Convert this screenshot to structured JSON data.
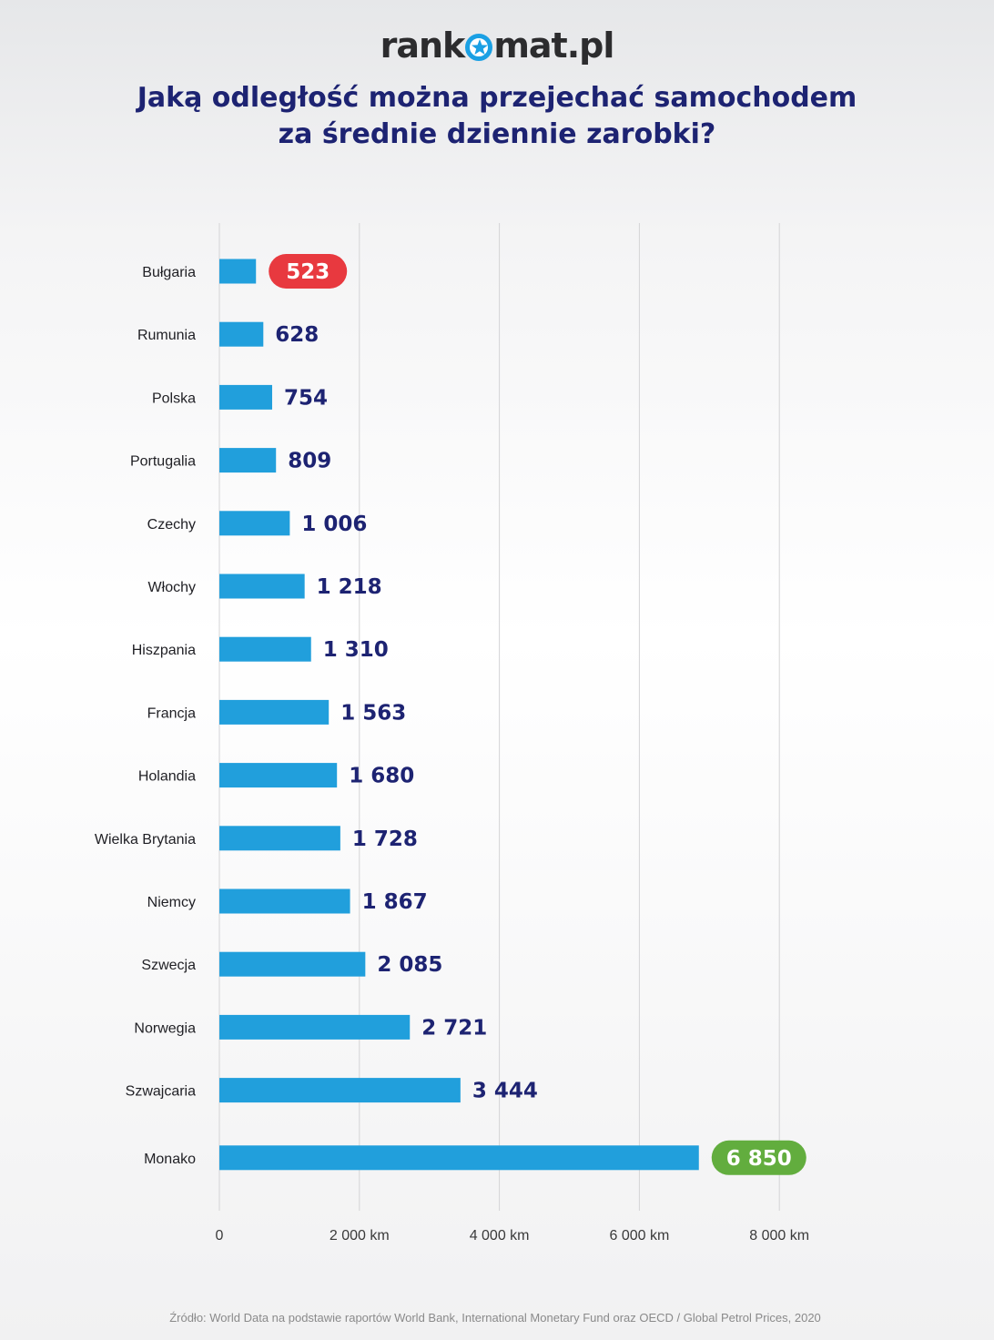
{
  "brand": {
    "logo_left": "rank",
    "logo_right": "mat.pl",
    "accent_color": "#1aa0e4"
  },
  "header": {
    "title_line1": "Jaką odległość można przejechać samochodem",
    "title_line2": "za średnie dziennie zarobki?"
  },
  "footer": {
    "source": "Źródło: World Data na podstawie raportów World Bank, International Monetary Fund oraz OECD / Global Petrol Prices, 2020"
  },
  "chart_data": {
    "type": "bar",
    "orientation": "horizontal",
    "categories": [
      "Bułgaria",
      "Rumunia",
      "Polska",
      "Portugalia",
      "Czechy",
      "Włochy",
      "Hiszpania",
      "Francja",
      "Holandia",
      "Wielka Brytania",
      "Niemcy",
      "Szwecja",
      "Norwegia",
      "Szwajcaria",
      "Monako"
    ],
    "values": [
      523,
      628,
      754,
      809,
      1006,
      1218,
      1310,
      1563,
      1680,
      1728,
      1867,
      2085,
      2721,
      3444,
      6850
    ],
    "value_labels": [
      "523",
      "628",
      "754",
      "809",
      "1 006",
      "1 218",
      "1 310",
      "1 563",
      "1 680",
      "1 728",
      "1 867",
      "2 085",
      "2 721",
      "3 444",
      "6 850"
    ],
    "xlim": [
      0,
      8000
    ],
    "x_ticks": [
      0,
      2000,
      4000,
      6000,
      8000
    ],
    "x_tick_labels": [
      "0",
      "2 000 km",
      "4 000 km",
      "6 000 km",
      "8 000 km"
    ],
    "grid": true,
    "highlights": {
      "min": {
        "category": "Bułgaria",
        "color": "#e8393f"
      },
      "max": {
        "category": "Monako",
        "color": "#62ad3e"
      }
    },
    "colors": {
      "bar": "#219fdc",
      "value_text": "#1d2372",
      "grid": "#d4d4d6",
      "label_text": "#1f1f24",
      "tick_text": "#3a3a3a"
    }
  }
}
